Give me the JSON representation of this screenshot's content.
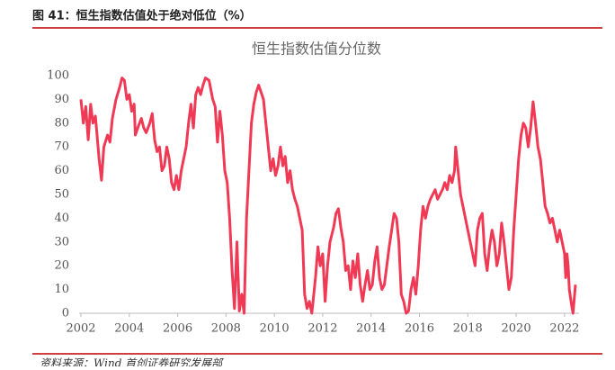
{
  "header": {
    "title": "图 41：恒生指数估值处于绝对低位（%）"
  },
  "chart_data": {
    "type": "line",
    "title": "恒生指数估值分位数",
    "x": [
      2002.0,
      2002.1,
      2002.2,
      2002.3,
      2002.4,
      2002.5,
      2002.6,
      2002.75,
      2002.85,
      2002.95,
      2003.1,
      2003.2,
      2003.3,
      2003.45,
      2003.6,
      2003.7,
      2003.8,
      2003.9,
      2004.0,
      2004.1,
      2004.2,
      2004.25,
      2004.35,
      2004.5,
      2004.6,
      2004.7,
      2004.85,
      2004.95,
      2005.05,
      2005.15,
      2005.25,
      2005.35,
      2005.45,
      2005.55,
      2005.65,
      2005.75,
      2005.85,
      2005.95,
      2006.05,
      2006.15,
      2006.25,
      2006.35,
      2006.45,
      2006.55,
      2006.65,
      2006.75,
      2006.85,
      2006.95,
      2007.05,
      2007.15,
      2007.3,
      2007.45,
      2007.55,
      2007.65,
      2007.75,
      2007.85,
      2007.95,
      2008.05,
      2008.15,
      2008.25,
      2008.35,
      2008.45,
      2008.55,
      2008.65,
      2008.75,
      2008.85,
      2008.95,
      2009.05,
      2009.15,
      2009.25,
      2009.35,
      2009.45,
      2009.55,
      2009.65,
      2009.75,
      2009.85,
      2009.95,
      2010.05,
      2010.15,
      2010.25,
      2010.35,
      2010.45,
      2010.55,
      2010.65,
      2010.75,
      2010.85,
      2010.95,
      2011.05,
      2011.15,
      2011.25,
      2011.35,
      2011.45,
      2011.55,
      2011.7,
      2011.8,
      2011.9,
      2012.0,
      2012.1,
      2012.2,
      2012.3,
      2012.45,
      2012.55,
      2012.65,
      2012.75,
      2012.85,
      2012.95,
      2013.05,
      2013.15,
      2013.25,
      2013.35,
      2013.45,
      2013.55,
      2013.65,
      2013.75,
      2013.85,
      2013.95,
      2014.05,
      2014.15,
      2014.25,
      2014.35,
      2014.45,
      2014.55,
      2014.65,
      2014.75,
      2014.85,
      2014.95,
      2015.05,
      2015.15,
      2015.25,
      2015.35,
      2015.45,
      2015.55,
      2015.65,
      2015.75,
      2015.85,
      2015.95,
      2016.05,
      2016.15,
      2016.25,
      2016.35,
      2016.45,
      2016.55,
      2016.65,
      2016.75,
      2016.85,
      2016.95,
      2017.05,
      2017.15,
      2017.25,
      2017.35,
      2017.45,
      2017.5,
      2017.6,
      2017.7,
      2017.8,
      2017.9,
      2018.0,
      2018.1,
      2018.2,
      2018.3,
      2018.4,
      2018.5,
      2018.6,
      2018.7,
      2018.8,
      2018.9,
      2019.0,
      2019.1,
      2019.2,
      2019.3,
      2019.4,
      2019.5,
      2019.6,
      2019.7,
      2019.8,
      2019.9,
      2020.0,
      2020.1,
      2020.2,
      2020.3,
      2020.4,
      2020.5,
      2020.6,
      2020.7,
      2020.8,
      2020.9,
      2021.0,
      2021.1,
      2021.2,
      2021.3,
      2021.4,
      2021.5,
      2021.6,
      2021.7,
      2021.8,
      2021.9,
      2022.0,
      2022.05,
      2022.1,
      2022.15,
      2022.2,
      2022.3,
      2022.35,
      2022.45
    ],
    "series": [
      {
        "color": "#f03a55",
        "values": [
          90,
          80,
          87,
          73,
          88,
          80,
          83,
          65,
          56,
          70,
          75,
          72,
          82,
          90,
          95,
          99,
          98,
          90,
          92,
          85,
          88,
          75,
          78,
          82,
          78,
          76,
          80,
          84,
          73,
          68,
          70,
          60,
          62,
          70,
          65,
          55,
          52,
          58,
          52,
          60,
          65,
          70,
          80,
          88,
          78,
          92,
          95,
          92,
          96,
          99,
          98,
          90,
          87,
          72,
          85,
          75,
          60,
          55,
          40,
          18,
          2,
          30,
          1,
          8,
          0,
          40,
          60,
          80,
          88,
          93,
          96,
          93,
          90,
          80,
          70,
          60,
          65,
          58,
          62,
          70,
          62,
          66,
          55,
          60,
          52,
          48,
          45,
          40,
          35,
          8,
          2,
          5,
          0,
          15,
          28,
          20,
          25,
          5,
          20,
          30,
          36,
          42,
          44,
          36,
          30,
          18,
          20,
          10,
          22,
          15,
          25,
          12,
          5,
          12,
          18,
          10,
          12,
          22,
          28,
          15,
          10,
          12,
          20,
          28,
          35,
          42,
          40,
          30,
          8,
          5,
          0,
          1,
          10,
          15,
          8,
          20,
          35,
          45,
          40,
          45,
          48,
          50,
          52,
          48,
          50,
          52,
          55,
          52,
          58,
          55,
          60,
          70,
          60,
          50,
          45,
          40,
          35,
          30,
          25,
          20,
          35,
          40,
          42,
          25,
          18,
          28,
          35,
          30,
          20,
          25,
          38,
          30,
          20,
          10,
          15,
          35,
          50,
          65,
          75,
          80,
          78,
          70,
          78,
          89,
          80,
          70,
          65,
          55,
          45,
          42,
          38,
          40,
          35,
          30,
          35,
          30,
          25,
          15,
          25,
          20,
          10,
          3,
          0,
          12
        ]
      }
    ],
    "xlim": [
      2002,
      2022.6
    ],
    "xticks": [
      2002,
      2004,
      2006,
      2008,
      2010,
      2012,
      2014,
      2016,
      2018,
      2020,
      2022
    ],
    "ylim": [
      0,
      100
    ],
    "yticks": [
      0,
      10,
      20,
      30,
      40,
      50,
      60,
      70,
      80,
      90,
      100
    ],
    "grid": false
  },
  "footer": {
    "source": "资料来源：Wind 首创证券研究发展部"
  }
}
